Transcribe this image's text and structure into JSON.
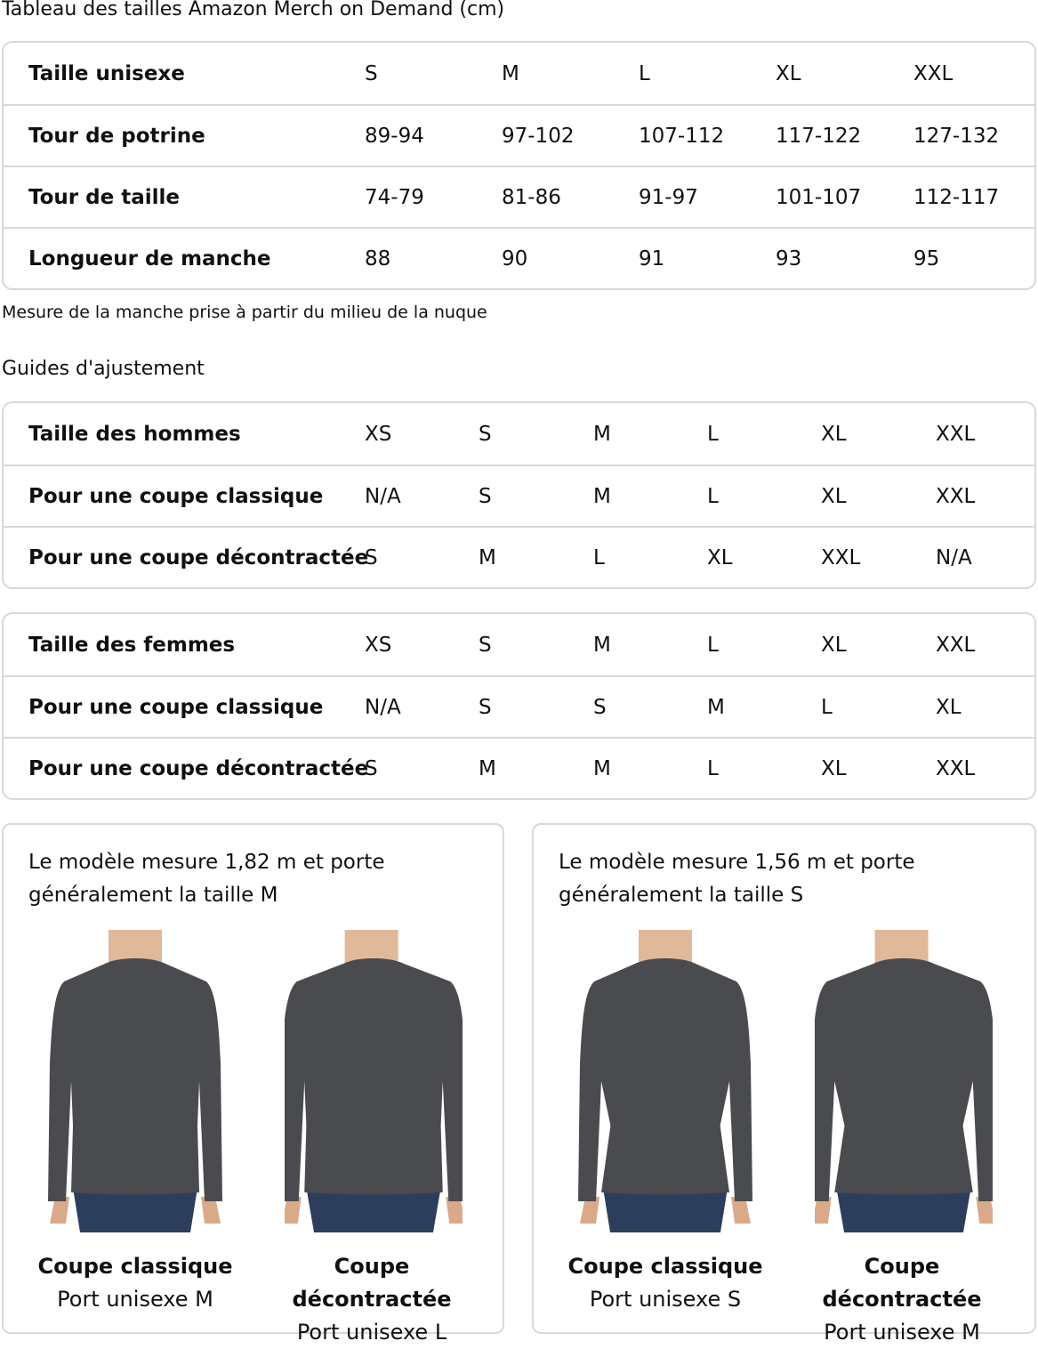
{
  "title": "Tableau des tailles Amazon Merch on Demand (cm)",
  "size_chart": {
    "rows": [
      {
        "label": "Taille unisexe",
        "values": [
          "S",
          "M",
          "L",
          "XL",
          "XXL"
        ]
      },
      {
        "label": "Tour de potrine",
        "values": [
          "89-94",
          "97-102",
          "107-112",
          "117-122",
          "127-132"
        ]
      },
      {
        "label": "Tour de taille",
        "values": [
          "74-79",
          "81-86",
          "91-97",
          "101-107",
          "112-117"
        ]
      },
      {
        "label": "Longueur de manche",
        "values": [
          "88",
          "90",
          "91",
          "93",
          "95"
        ]
      }
    ]
  },
  "note": "Mesure de la manche prise à partir du milieu de la nuque",
  "fit_guides_title": "Guides d'ajustement",
  "men": {
    "rows": [
      {
        "label": "Taille des hommes",
        "values": [
          "XS",
          "S",
          "M",
          "L",
          "XL",
          "XXL"
        ]
      },
      {
        "label": "Pour une coupe classique",
        "values": [
          "N/A",
          "S",
          "M",
          "L",
          "XL",
          "XXL"
        ]
      },
      {
        "label": "Pour une coupe décontractée",
        "values": [
          "S",
          "M",
          "L",
          "XL",
          "XXL",
          "N/A"
        ]
      }
    ]
  },
  "women": {
    "rows": [
      {
        "label": "Taille des femmes",
        "values": [
          "XS",
          "S",
          "M",
          "L",
          "XL",
          "XXL"
        ]
      },
      {
        "label": "Pour une coupe classique",
        "values": [
          "N/A",
          "S",
          "S",
          "M",
          "L",
          "XL"
        ]
      },
      {
        "label": "Pour une coupe décontractée",
        "values": [
          "S",
          "M",
          "M",
          "L",
          "XL",
          "XXL"
        ]
      }
    ]
  },
  "cards": [
    {
      "description": "Le modèle mesure 1,82 m et porte généralement la taille M",
      "figures": [
        {
          "fit": "Coupe classique",
          "size": "Port unisexe M"
        },
        {
          "fit": "Coupe décontractée",
          "size": "Port unisexe L"
        }
      ]
    },
    {
      "description": "Le modèle mesure 1,56 m et porte généralement la taille S",
      "figures": [
        {
          "fit": "Coupe classique",
          "size": "Port unisexe S"
        },
        {
          "fit": "Coupe décontractée",
          "size": "Port unisexe M"
        }
      ]
    }
  ],
  "colors": {
    "border": "#d5d9d9",
    "shirt": "#4a4b4e",
    "jeans": "#2c3e5c"
  }
}
